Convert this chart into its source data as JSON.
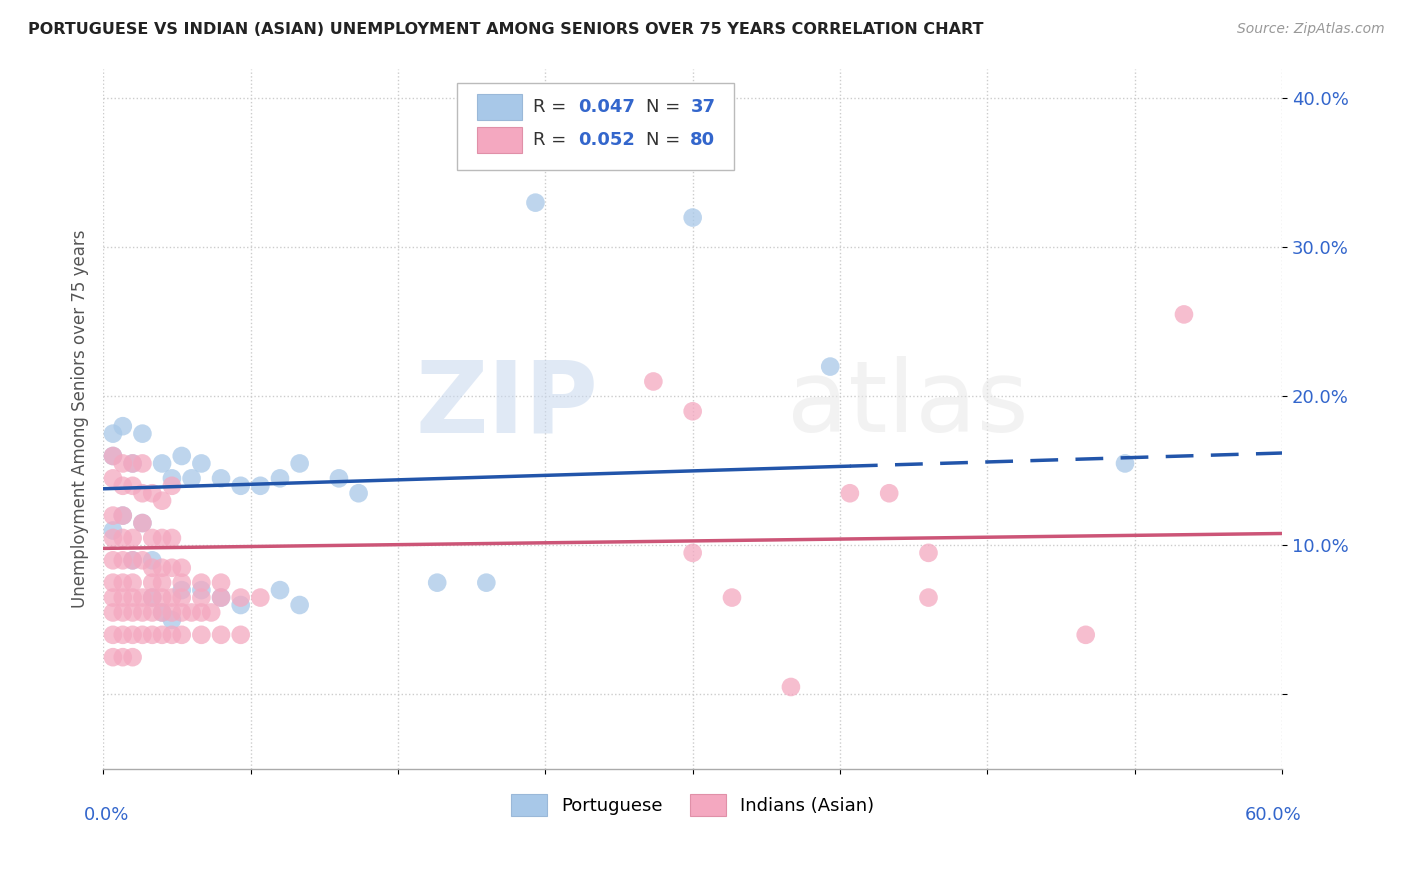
{
  "title": "PORTUGUESE VS INDIAN (ASIAN) UNEMPLOYMENT AMONG SENIORS OVER 75 YEARS CORRELATION CHART",
  "source": "Source: ZipAtlas.com",
  "ylabel": "Unemployment Among Seniors over 75 years",
  "xlim": [
    0.0,
    0.6
  ],
  "ylim": [
    -0.05,
    0.42
  ],
  "yticks": [
    0.0,
    0.1,
    0.2,
    0.3,
    0.4
  ],
  "ytick_labels": [
    "",
    "10.0%",
    "20.0%",
    "30.0%",
    "40.0%"
  ],
  "portuguese_color": "#a8c8e8",
  "indian_color": "#f4a8c0",
  "portuguese_line_color": "#2255aa",
  "indian_line_color": "#cc5577",
  "portuguese_line": [
    0.0,
    0.138,
    0.6,
    0.162
  ],
  "indian_line": [
    0.0,
    0.098,
    0.6,
    0.108
  ],
  "portuguese_line_solid_end": 0.38,
  "portuguese_scatter": [
    [
      0.005,
      0.175
    ],
    [
      0.01,
      0.18
    ],
    [
      0.02,
      0.175
    ],
    [
      0.03,
      0.155
    ],
    [
      0.04,
      0.16
    ],
    [
      0.05,
      0.155
    ],
    [
      0.035,
      0.145
    ],
    [
      0.045,
      0.145
    ],
    [
      0.005,
      0.16
    ],
    [
      0.015,
      0.155
    ],
    [
      0.01,
      0.12
    ],
    [
      0.02,
      0.115
    ],
    [
      0.005,
      0.11
    ],
    [
      0.015,
      0.09
    ],
    [
      0.025,
      0.09
    ],
    [
      0.06,
      0.145
    ],
    [
      0.07,
      0.14
    ],
    [
      0.08,
      0.14
    ],
    [
      0.09,
      0.145
    ],
    [
      0.1,
      0.155
    ],
    [
      0.12,
      0.145
    ],
    [
      0.13,
      0.135
    ],
    [
      0.025,
      0.065
    ],
    [
      0.03,
      0.055
    ],
    [
      0.035,
      0.05
    ],
    [
      0.04,
      0.07
    ],
    [
      0.05,
      0.07
    ],
    [
      0.06,
      0.065
    ],
    [
      0.07,
      0.06
    ],
    [
      0.09,
      0.07
    ],
    [
      0.1,
      0.06
    ],
    [
      0.17,
      0.075
    ],
    [
      0.195,
      0.075
    ],
    [
      0.22,
      0.33
    ],
    [
      0.3,
      0.32
    ],
    [
      0.37,
      0.22
    ],
    [
      0.52,
      0.155
    ]
  ],
  "indian_scatter": [
    [
      0.005,
      0.16
    ],
    [
      0.01,
      0.155
    ],
    [
      0.015,
      0.155
    ],
    [
      0.02,
      0.155
    ],
    [
      0.005,
      0.145
    ],
    [
      0.01,
      0.14
    ],
    [
      0.015,
      0.14
    ],
    [
      0.02,
      0.135
    ],
    [
      0.025,
      0.135
    ],
    [
      0.03,
      0.13
    ],
    [
      0.035,
      0.14
    ],
    [
      0.005,
      0.12
    ],
    [
      0.01,
      0.12
    ],
    [
      0.02,
      0.115
    ],
    [
      0.005,
      0.105
    ],
    [
      0.01,
      0.105
    ],
    [
      0.015,
      0.105
    ],
    [
      0.025,
      0.105
    ],
    [
      0.03,
      0.105
    ],
    [
      0.035,
      0.105
    ],
    [
      0.005,
      0.09
    ],
    [
      0.01,
      0.09
    ],
    [
      0.015,
      0.09
    ],
    [
      0.02,
      0.09
    ],
    [
      0.025,
      0.085
    ],
    [
      0.03,
      0.085
    ],
    [
      0.035,
      0.085
    ],
    [
      0.04,
      0.085
    ],
    [
      0.005,
      0.075
    ],
    [
      0.01,
      0.075
    ],
    [
      0.015,
      0.075
    ],
    [
      0.025,
      0.075
    ],
    [
      0.03,
      0.075
    ],
    [
      0.04,
      0.075
    ],
    [
      0.05,
      0.075
    ],
    [
      0.06,
      0.075
    ],
    [
      0.005,
      0.065
    ],
    [
      0.01,
      0.065
    ],
    [
      0.015,
      0.065
    ],
    [
      0.02,
      0.065
    ],
    [
      0.025,
      0.065
    ],
    [
      0.03,
      0.065
    ],
    [
      0.035,
      0.065
    ],
    [
      0.04,
      0.065
    ],
    [
      0.05,
      0.065
    ],
    [
      0.06,
      0.065
    ],
    [
      0.07,
      0.065
    ],
    [
      0.08,
      0.065
    ],
    [
      0.005,
      0.055
    ],
    [
      0.01,
      0.055
    ],
    [
      0.015,
      0.055
    ],
    [
      0.02,
      0.055
    ],
    [
      0.025,
      0.055
    ],
    [
      0.03,
      0.055
    ],
    [
      0.035,
      0.055
    ],
    [
      0.04,
      0.055
    ],
    [
      0.045,
      0.055
    ],
    [
      0.05,
      0.055
    ],
    [
      0.055,
      0.055
    ],
    [
      0.005,
      0.04
    ],
    [
      0.01,
      0.04
    ],
    [
      0.015,
      0.04
    ],
    [
      0.02,
      0.04
    ],
    [
      0.025,
      0.04
    ],
    [
      0.03,
      0.04
    ],
    [
      0.035,
      0.04
    ],
    [
      0.04,
      0.04
    ],
    [
      0.05,
      0.04
    ],
    [
      0.06,
      0.04
    ],
    [
      0.07,
      0.04
    ],
    [
      0.005,
      0.025
    ],
    [
      0.01,
      0.025
    ],
    [
      0.015,
      0.025
    ],
    [
      0.28,
      0.21
    ],
    [
      0.3,
      0.19
    ],
    [
      0.38,
      0.135
    ],
    [
      0.4,
      0.135
    ],
    [
      0.42,
      0.095
    ],
    [
      0.3,
      0.095
    ],
    [
      0.55,
      0.255
    ],
    [
      0.32,
      0.065
    ],
    [
      0.42,
      0.065
    ],
    [
      0.5,
      0.04
    ],
    [
      0.35,
      0.005
    ]
  ],
  "background_color": "#ffffff",
  "grid_color": "#cccccc",
  "watermark_text": "ZIPatlas",
  "dpi": 100
}
